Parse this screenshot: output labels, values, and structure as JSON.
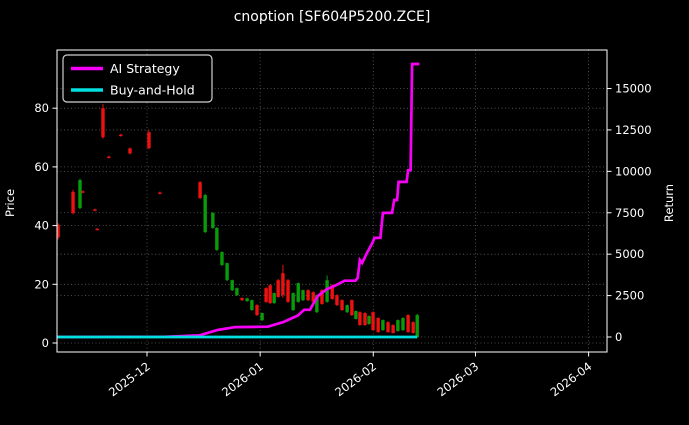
{
  "window": {
    "title": "cnoption [SF604P5200.ZCE]"
  },
  "legend": {
    "items": [
      {
        "label": "AI Strategy",
        "color": "#f800f8"
      },
      {
        "label": "Buy-and-Hold",
        "color": "#00e0e0"
      }
    ]
  },
  "chart_data": {
    "type": "candlestick+line",
    "title": "cnoption [SF604P5200.ZCE]",
    "grid": true,
    "legend_position": "upper-left",
    "colors": {
      "background": "#000000",
      "frame": "#ffffff",
      "text": "#ffffff",
      "grid": "#6b6b6b",
      "candle_up": "#0a9b0a",
      "candle_down": "#ee1111",
      "ai_strategy": "#f800f8",
      "buy_and_hold": "#00e0e0"
    },
    "x_axis": {
      "tick_labels": [
        "2025-12",
        "2026-01",
        "2026-02",
        "2026-03",
        "2026-04"
      ],
      "tick_days": [
        24.66,
        55.66,
        86.66,
        114.66,
        145.66
      ],
      "range_days": [
        0,
        150.7
      ],
      "label_rotation_deg": -37
    },
    "left_axis": {
      "label": "Price",
      "ticks": [
        0,
        20,
        40,
        60,
        80
      ],
      "range": [
        -3.07,
        99.83
      ]
    },
    "right_axis": {
      "label": "Return",
      "ticks": [
        0,
        2500,
        5000,
        7500,
        10000,
        12500,
        15000
      ],
      "range": [
        -905,
        17325
      ]
    },
    "candles": [
      {
        "d": 0.3,
        "o": 40.2,
        "h": 40.8,
        "l": 35.3,
        "c": 36.0
      },
      {
        "d": 4.4,
        "o": 51.5,
        "h": 52.2,
        "l": 43.8,
        "c": 44.3
      },
      {
        "d": 6.3,
        "o": 46.0,
        "h": 56.0,
        "l": 45.6,
        "c": 55.5
      },
      {
        "d": 7.1,
        "o": 51.7,
        "h": 52.0,
        "l": 51.0,
        "c": 51.3
      },
      {
        "d": 10.4,
        "o": 45.5,
        "h": 45.8,
        "l": 44.9,
        "c": 45.1
      },
      {
        "d": 11.0,
        "o": 38.9,
        "h": 39.2,
        "l": 38.4,
        "c": 38.6
      },
      {
        "d": 12.6,
        "o": 80.0,
        "h": 81.4,
        "l": 69.6,
        "c": 70.1
      },
      {
        "d": 14.2,
        "o": 63.5,
        "h": 63.8,
        "l": 62.9,
        "c": 63.1
      },
      {
        "d": 17.5,
        "o": 71.0,
        "h": 71.3,
        "l": 70.3,
        "c": 70.6
      },
      {
        "d": 20.0,
        "o": 66.3,
        "h": 66.6,
        "l": 64.2,
        "c": 64.6
      },
      {
        "d": 25.2,
        "o": 71.8,
        "h": 72.5,
        "l": 66.0,
        "c": 66.4
      },
      {
        "d": 28.2,
        "o": 51.3,
        "h": 51.6,
        "l": 50.6,
        "c": 50.9
      },
      {
        "d": 39.2,
        "o": 54.8,
        "h": 55.2,
        "l": 49.0,
        "c": 49.4
      },
      {
        "d": 40.6,
        "o": 37.8,
        "h": 50.8,
        "l": 37.4,
        "c": 50.4
      },
      {
        "d": 42.7,
        "o": 39.2,
        "h": 44.6,
        "l": 38.9,
        "c": 44.3
      },
      {
        "d": 43.8,
        "o": 31.7,
        "h": 39.5,
        "l": 31.4,
        "c": 39.2
      },
      {
        "d": 45.2,
        "o": 26.6,
        "h": 31.2,
        "l": 26.2,
        "c": 31.0
      },
      {
        "d": 46.6,
        "o": 21.4,
        "h": 27.4,
        "l": 21.1,
        "c": 27.2
      },
      {
        "d": 48.0,
        "o": 18.0,
        "h": 21.6,
        "l": 17.7,
        "c": 21.4
      },
      {
        "d": 49.3,
        "o": 16.3,
        "h": 18.9,
        "l": 16.0,
        "c": 18.7
      },
      {
        "d": 50.7,
        "o": 15.3,
        "h": 15.6,
        "l": 14.3,
        "c": 14.6
      },
      {
        "d": 52.1,
        "o": 14.3,
        "h": 15.4,
        "l": 14.0,
        "c": 15.2
      },
      {
        "d": 53.4,
        "o": 11.2,
        "h": 14.8,
        "l": 11.0,
        "c": 14.6
      },
      {
        "d": 54.8,
        "o": 12.9,
        "h": 13.2,
        "l": 9.2,
        "c": 9.5
      },
      {
        "d": 56.2,
        "o": 7.8,
        "h": 10.4,
        "l": 7.5,
        "c": 10.2
      },
      {
        "d": 57.3,
        "o": 18.7,
        "h": 19.0,
        "l": 13.7,
        "c": 14.0
      },
      {
        "d": 58.4,
        "o": 19.7,
        "h": 20.0,
        "l": 13.3,
        "c": 13.6
      },
      {
        "d": 59.5,
        "o": 13.6,
        "h": 17.2,
        "l": 13.3,
        "c": 17.0
      },
      {
        "d": 60.6,
        "o": 21.4,
        "h": 21.8,
        "l": 15.4,
        "c": 15.7
      },
      {
        "d": 61.9,
        "o": 23.8,
        "h": 26.6,
        "l": 15.4,
        "c": 16.3
      },
      {
        "d": 63.3,
        "o": 21.4,
        "h": 21.8,
        "l": 13.7,
        "c": 14.0
      },
      {
        "d": 64.7,
        "o": 11.2,
        "h": 17.2,
        "l": 11.0,
        "c": 17.0
      },
      {
        "d": 66.1,
        "o": 14.0,
        "h": 20.6,
        "l": 13.7,
        "c": 20.4
      },
      {
        "d": 67.4,
        "o": 14.6,
        "h": 18.2,
        "l": 14.3,
        "c": 18.0
      },
      {
        "d": 68.8,
        "o": 18.0,
        "h": 18.3,
        "l": 14.3,
        "c": 14.6
      },
      {
        "d": 70.2,
        "o": 17.3,
        "h": 17.6,
        "l": 13.8,
        "c": 14.1
      },
      {
        "d": 71.2,
        "o": 10.5,
        "h": 16.5,
        "l": 10.2,
        "c": 16.3
      },
      {
        "d": 72.6,
        "o": 18.0,
        "h": 18.3,
        "l": 13.0,
        "c": 13.3
      },
      {
        "d": 74.0,
        "o": 14.0,
        "h": 23.0,
        "l": 13.7,
        "c": 21.4
      },
      {
        "d": 75.4,
        "o": 19.7,
        "h": 20.0,
        "l": 14.7,
        "c": 15.0
      },
      {
        "d": 76.7,
        "o": 16.3,
        "h": 16.6,
        "l": 12.6,
        "c": 12.9
      },
      {
        "d": 78.1,
        "o": 14.6,
        "h": 14.9,
        "l": 11.0,
        "c": 11.2
      },
      {
        "d": 79.5,
        "o": 10.5,
        "h": 13.1,
        "l": 10.2,
        "c": 12.9
      },
      {
        "d": 80.8,
        "o": 14.6,
        "h": 14.9,
        "l": 9.2,
        "c": 9.5
      },
      {
        "d": 81.9,
        "o": 8.2,
        "h": 11.1,
        "l": 8.0,
        "c": 10.9
      },
      {
        "d": 83.0,
        "o": 10.5,
        "h": 10.8,
        "l": 5.9,
        "c": 6.1
      },
      {
        "d": 84.4,
        "o": 10.2,
        "h": 10.5,
        "l": 5.9,
        "c": 6.1
      },
      {
        "d": 85.5,
        "o": 6.5,
        "h": 9.4,
        "l": 6.2,
        "c": 9.2
      },
      {
        "d": 86.6,
        "o": 10.5,
        "h": 10.8,
        "l": 4.2,
        "c": 4.4
      },
      {
        "d": 88.0,
        "o": 8.5,
        "h": 8.8,
        "l": 3.5,
        "c": 3.7
      },
      {
        "d": 89.3,
        "o": 4.4,
        "h": 8.0,
        "l": 4.1,
        "c": 7.8
      },
      {
        "d": 90.7,
        "o": 7.1,
        "h": 7.4,
        "l": 3.5,
        "c": 3.7
      },
      {
        "d": 92.1,
        "o": 6.1,
        "h": 6.4,
        "l": 3.2,
        "c": 3.4
      },
      {
        "d": 93.4,
        "o": 4.1,
        "h": 8.0,
        "l": 3.8,
        "c": 7.8
      },
      {
        "d": 94.8,
        "o": 4.4,
        "h": 8.8,
        "l": 4.1,
        "c": 8.5
      },
      {
        "d": 96.2,
        "o": 9.5,
        "h": 9.8,
        "l": 3.5,
        "c": 3.7
      },
      {
        "d": 97.6,
        "o": 7.1,
        "h": 7.4,
        "l": 3.2,
        "c": 3.4
      },
      {
        "d": 98.7,
        "o": 2.0,
        "h": 10.0,
        "l": 1.9,
        "c": 9.5
      }
    ],
    "series": [
      {
        "name": "AI Strategy",
        "axis": "right",
        "color": "#f800f8",
        "points": [
          [
            0,
            0
          ],
          [
            30,
            20
          ],
          [
            39,
            100
          ],
          [
            44,
            420
          ],
          [
            48.8,
            600
          ],
          [
            57.8,
            620
          ],
          [
            62,
            900
          ],
          [
            66,
            1300
          ],
          [
            67.7,
            1640
          ],
          [
            69.3,
            1640
          ],
          [
            71.5,
            2480
          ],
          [
            74,
            2900
          ],
          [
            76.2,
            3100
          ],
          [
            78.8,
            3400
          ],
          [
            81.8,
            3400
          ],
          [
            82.4,
            3560
          ],
          [
            83.0,
            4650
          ],
          [
            83.6,
            4470
          ],
          [
            85.0,
            5100
          ],
          [
            86.4,
            5670
          ],
          [
            87.0,
            5980
          ],
          [
            88.6,
            5980
          ],
          [
            89.3,
            7490
          ],
          [
            91.8,
            7490
          ],
          [
            92.4,
            8270
          ],
          [
            93.2,
            8270
          ],
          [
            93.6,
            9360
          ],
          [
            95.8,
            9360
          ],
          [
            96.2,
            10070
          ],
          [
            96.9,
            10070
          ],
          [
            97.3,
            16480
          ],
          [
            99.3,
            16480
          ]
        ]
      },
      {
        "name": "Buy-and-Hold",
        "axis": "right",
        "color": "#00e0e0",
        "points": [
          [
            0,
            0
          ],
          [
            98.7,
            0
          ]
        ]
      }
    ]
  }
}
